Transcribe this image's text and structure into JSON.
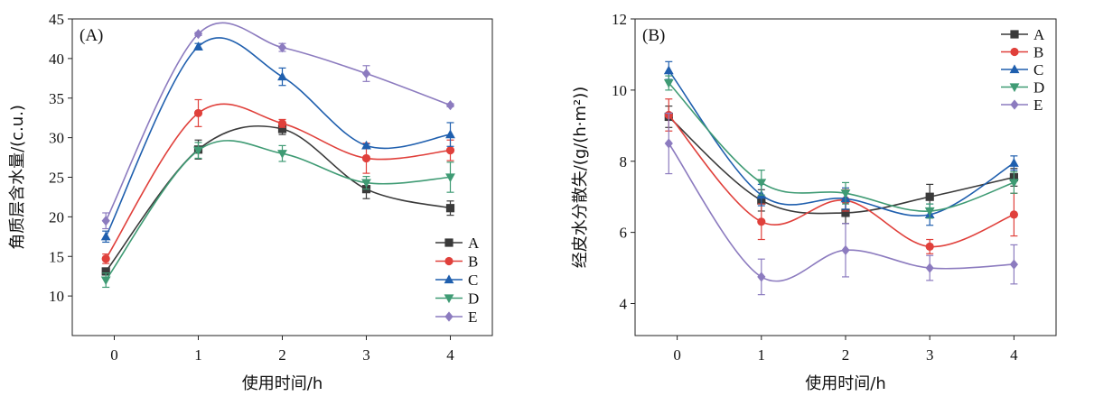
{
  "chart_data": [
    {
      "panel_label": "(A)",
      "type": "line",
      "xlabel": "使用时间/h",
      "ylabel": "角质层含水量/(c.u.)",
      "xlim": [
        -0.5,
        4.5
      ],
      "ylim": [
        5,
        45
      ],
      "xticks": [
        0,
        1,
        2,
        3,
        4
      ],
      "yticks": [
        10,
        15,
        20,
        25,
        30,
        35,
        40,
        45
      ],
      "legend_position": "bottom-right",
      "series": [
        {
          "name": "A",
          "color": "#3a3a3a",
          "marker": "square",
          "x": [
            -0.1,
            1,
            2,
            3,
            4
          ],
          "y": [
            13.1,
            28.5,
            31.1,
            23.5,
            21.1
          ],
          "err": [
            0.4,
            1.2,
            0.7,
            1.2,
            0.9
          ]
        },
        {
          "name": "B",
          "color": "#e0403b",
          "marker": "circle",
          "x": [
            -0.1,
            1,
            2,
            3,
            4
          ],
          "y": [
            14.7,
            33.1,
            31.8,
            27.4,
            28.4
          ],
          "err": [
            0.6,
            1.7,
            0.5,
            1.9,
            1.3
          ]
        },
        {
          "name": "C",
          "color": "#1f5fae",
          "marker": "triangle-up",
          "x": [
            -0.1,
            1,
            2,
            3,
            4
          ],
          "y": [
            17.5,
            41.5,
            37.7,
            29.0,
            30.4
          ],
          "err": [
            0.7,
            0.4,
            1.1,
            0.2,
            1.5
          ]
        },
        {
          "name": "D",
          "color": "#3f9b74",
          "marker": "triangle-down",
          "x": [
            -0.1,
            1,
            2,
            3,
            4
          ],
          "y": [
            12.0,
            28.4,
            28.0,
            24.3,
            25.0
          ],
          "err": [
            0.9,
            1.0,
            1.0,
            0.8,
            1.9
          ]
        },
        {
          "name": "E",
          "color": "#8c7bbf",
          "marker": "diamond",
          "x": [
            -0.1,
            1,
            2,
            3,
            4
          ],
          "y": [
            19.5,
            43.1,
            41.4,
            38.1,
            34.1
          ],
          "err": [
            1.0,
            0.2,
            0.5,
            1.0,
            0.2
          ]
        }
      ]
    },
    {
      "panel_label": "(B)",
      "type": "line",
      "xlabel": "使用时间/h",
      "ylabel": "经皮水分散失/(g/(h·m²))",
      "xlim": [
        -0.5,
        4.5
      ],
      "ylim": [
        3.1,
        12
      ],
      "xticks": [
        0,
        1,
        2,
        3,
        4
      ],
      "yticks": [
        4,
        6,
        8,
        10,
        12
      ],
      "legend_position": "top-right",
      "series": [
        {
          "name": "A",
          "color": "#3a3a3a",
          "marker": "square",
          "x": [
            -0.1,
            1,
            2,
            3,
            4
          ],
          "y": [
            9.25,
            6.9,
            6.55,
            7.0,
            7.55
          ],
          "err": [
            0.3,
            0.3,
            0.3,
            0.35,
            0.25
          ]
        },
        {
          "name": "B",
          "color": "#e0403b",
          "marker": "circle",
          "x": [
            -0.1,
            1,
            2,
            3,
            4
          ],
          "y": [
            9.3,
            6.3,
            6.9,
            5.6,
            6.5
          ],
          "err": [
            0.45,
            0.5,
            0.3,
            0.2,
            0.6
          ]
        },
        {
          "name": "C",
          "color": "#1f5fae",
          "marker": "triangle-up",
          "x": [
            -0.1,
            1,
            2,
            3,
            4
          ],
          "y": [
            10.55,
            7.05,
            6.95,
            6.5,
            7.95
          ],
          "err": [
            0.25,
            0.3,
            0.3,
            0.3,
            0.2
          ]
        },
        {
          "name": "D",
          "color": "#3f9b74",
          "marker": "triangle-down",
          "x": [
            -0.1,
            1,
            2,
            3,
            4
          ],
          "y": [
            10.2,
            7.4,
            7.1,
            6.6,
            7.4
          ],
          "err": [
            0.2,
            0.35,
            0.3,
            0.2,
            0.3
          ]
        },
        {
          "name": "E",
          "color": "#8c7bbf",
          "marker": "diamond",
          "x": [
            -0.1,
            1,
            2,
            3,
            4
          ],
          "y": [
            8.5,
            4.75,
            5.5,
            5.0,
            5.1
          ],
          "err": [
            0.85,
            0.5,
            0.75,
            0.35,
            0.55
          ]
        }
      ]
    }
  ]
}
